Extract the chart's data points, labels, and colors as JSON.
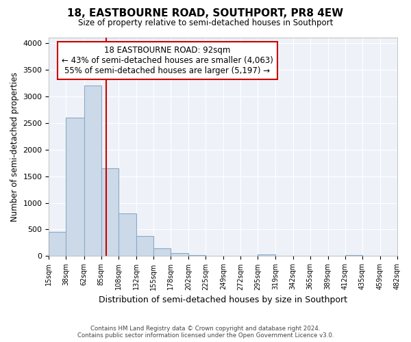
{
  "title1": "18, EASTBOURNE ROAD, SOUTHPORT, PR8 4EW",
  "title2": "Size of property relative to semi-detached houses in Southport",
  "xlabel": "Distribution of semi-detached houses by size in Southport",
  "ylabel": "Number of semi-detached properties",
  "footer1": "Contains HM Land Registry data © Crown copyright and database right 2024.",
  "footer2": "Contains public sector information licensed under the Open Government Licence v3.0.",
  "property_size": 92,
  "annotation_line1": "18 EASTBOURNE ROAD: 92sqm",
  "annotation_line2": "← 43% of semi-detached houses are smaller (4,063)",
  "annotation_line3": "55% of semi-detached houses are larger (5,197) →",
  "bar_color": "#ccd9e8",
  "bar_edge_color": "#8aaac8",
  "marker_color": "#cc0000",
  "annotation_box_edge": "#cc0000",
  "background_color": "#ffffff",
  "plot_bg_color": "#eef2f8",
  "grid_color": "#ffffff",
  "bin_edges": [
    15,
    38,
    62,
    85,
    108,
    132,
    155,
    178,
    202,
    225,
    249,
    272,
    295,
    319,
    342,
    365,
    389,
    412,
    435,
    459,
    482
  ],
  "bin_labels": [
    "15sqm",
    "38sqm",
    "62sqm",
    "85sqm",
    "108sqm",
    "132sqm",
    "155sqm",
    "178sqm",
    "202sqm",
    "225sqm",
    "249sqm",
    "272sqm",
    "295sqm",
    "319sqm",
    "342sqm",
    "365sqm",
    "389sqm",
    "412sqm",
    "435sqm",
    "459sqm",
    "482sqm"
  ],
  "counts": [
    450,
    2600,
    3200,
    1650,
    800,
    380,
    150,
    60,
    15,
    5,
    2,
    1,
    30,
    0,
    0,
    0,
    0,
    15,
    0,
    0
  ],
  "ylim": [
    0,
    4100
  ],
  "yticks": [
    0,
    500,
    1000,
    1500,
    2000,
    2500,
    3000,
    3500,
    4000
  ]
}
